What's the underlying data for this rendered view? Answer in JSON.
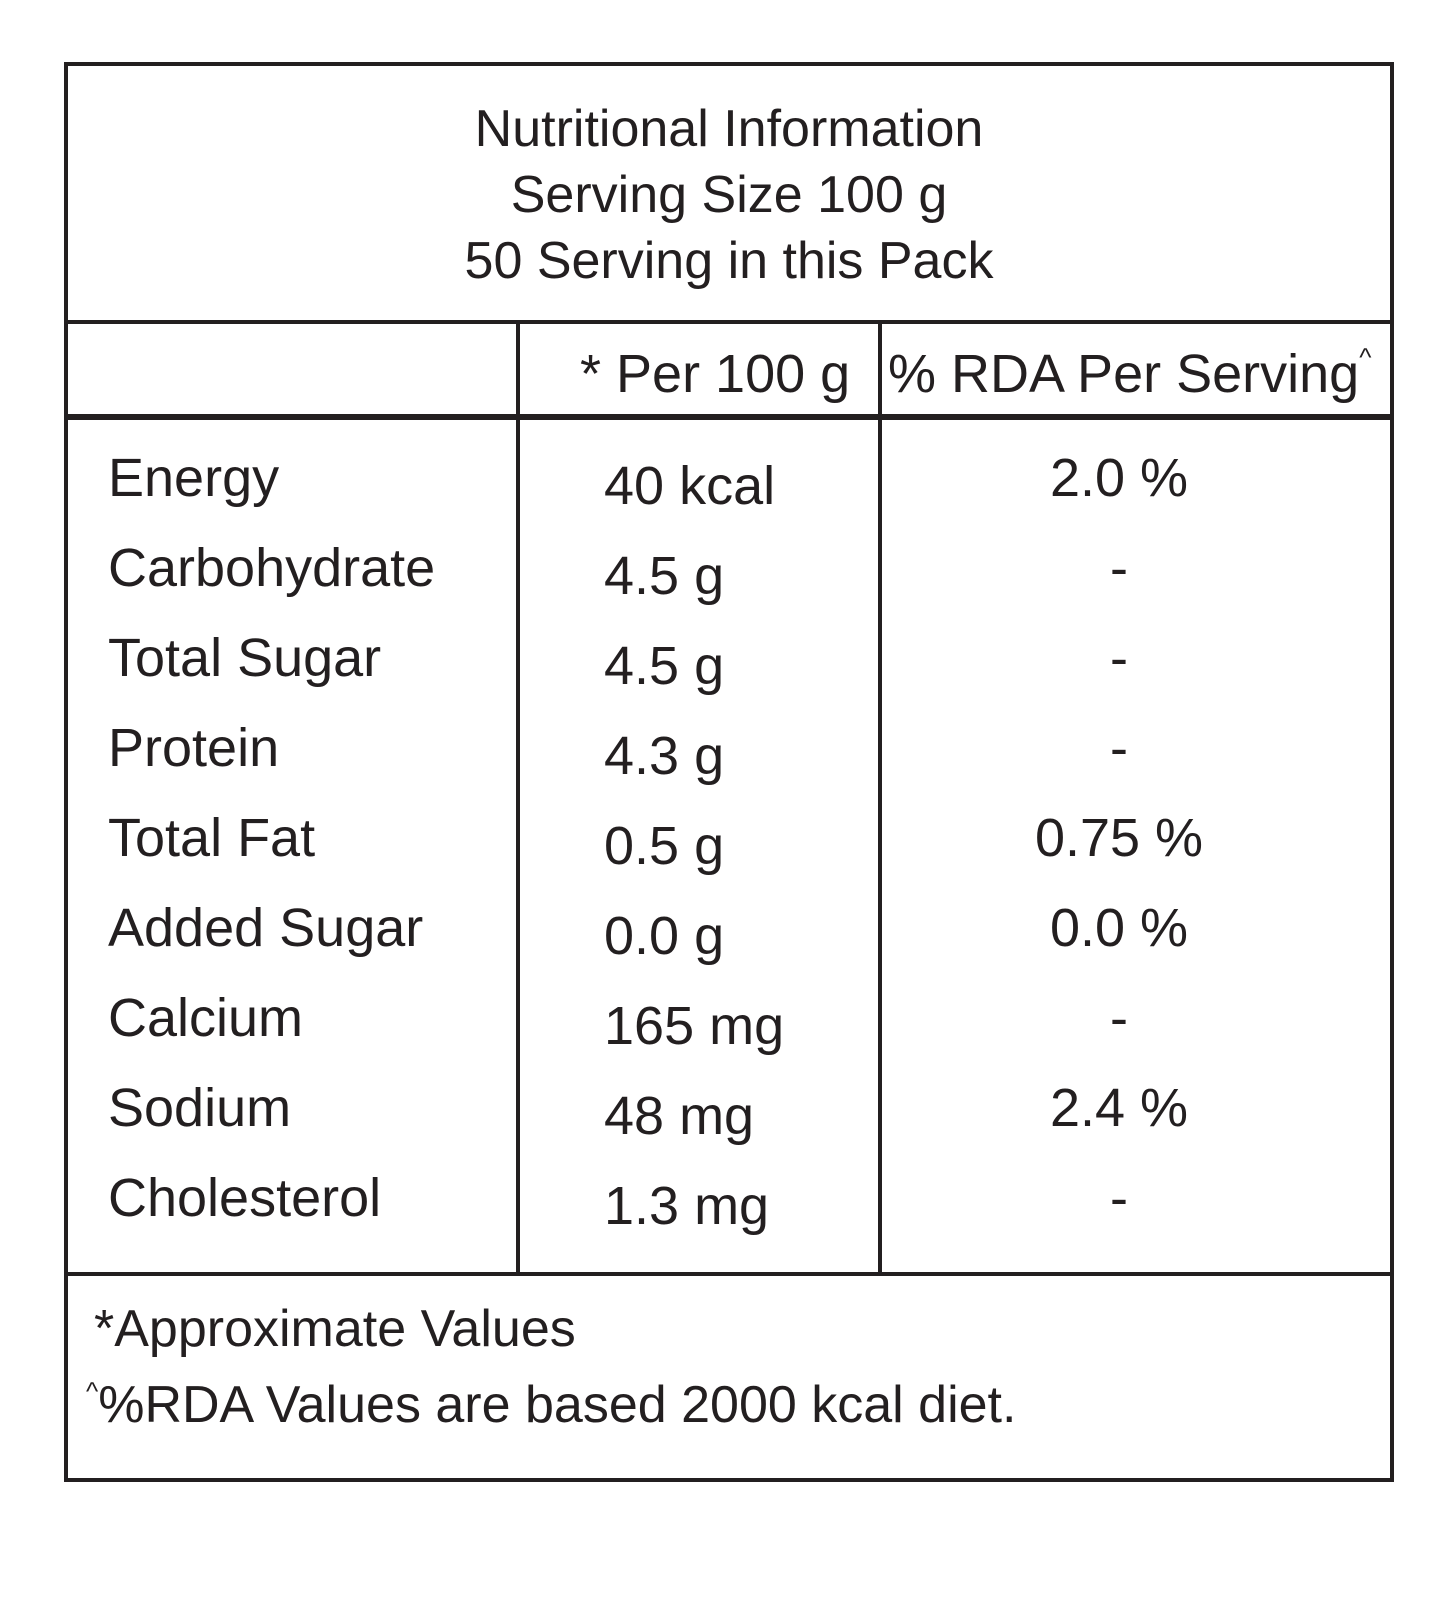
{
  "header": {
    "title": "Nutritional Information",
    "serving_size": "Serving Size 100 g",
    "servings": "50 Serving in this Pack"
  },
  "columns": {
    "nutrient": "",
    "per_100g": "* Per 100 g",
    "rda": "% RDA Per Serving",
    "rda_mark": "^"
  },
  "rows": [
    {
      "name": "Energy",
      "per_100g": "40 kcal",
      "rda": "2.0 %"
    },
    {
      "name": "Carbohydrate",
      "per_100g": "4.5 g",
      "rda": "-"
    },
    {
      "name": "Total Sugar",
      "per_100g": "4.5 g",
      "rda": "-"
    },
    {
      "name": "Protein",
      "per_100g": "4.3 g",
      "rda": "-"
    },
    {
      "name": "Total Fat",
      "per_100g": "0.5 g",
      "rda": "0.75 %"
    },
    {
      "name": "Added Sugar",
      "per_100g": "0.0 g",
      "rda": "0.0 %"
    },
    {
      "name": "Calcium",
      "per_100g": "165 mg",
      "rda": "-"
    },
    {
      "name": "Sodium",
      "per_100g": "48 mg",
      "rda": "2.4 %"
    },
    {
      "name": "Cholesterol",
      "per_100g": "1.3 mg",
      "rda": "-"
    }
  ],
  "footnotes": {
    "approx": "*Approximate Values",
    "rda_mark": "^",
    "rda_note": "%RDA Values are based 2000 kcal diet."
  },
  "colors": {
    "ink": "#231f20",
    "background": "#ffffff"
  }
}
